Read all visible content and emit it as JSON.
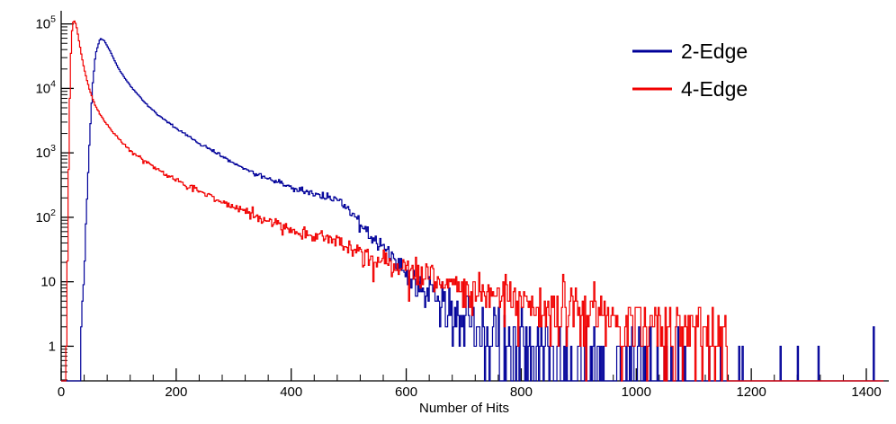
{
  "chart_data": {
    "type": "line",
    "subtype": "step-histogram",
    "title": "",
    "xlabel": "Number of Hits",
    "ylabel": "",
    "xlim": [
      0,
      1430
    ],
    "ylim": [
      0.29,
      160000
    ],
    "log_y": true,
    "grid": false,
    "background": "#ffffff",
    "axis_color": "#000000",
    "x_major_ticks": [
      0,
      200,
      400,
      600,
      800,
      1000,
      1200,
      1400
    ],
    "x_minor_step": 40,
    "y_ticks": [
      {
        "value": 1,
        "text": "1"
      },
      {
        "value": 10,
        "text": "10"
      },
      {
        "value": 100,
        "text": "10",
        "exp": "2"
      },
      {
        "value": 1000,
        "text": "10",
        "exp": "3"
      },
      {
        "value": 10000,
        "text": "10",
        "exp": "4"
      },
      {
        "value": 100000,
        "text": "10",
        "exp": "5"
      }
    ],
    "legend": {
      "position": "top-right"
    },
    "bin_width": 2,
    "noise_seed": 42,
    "series": [
      {
        "name": "2-Edge",
        "color": "#000099",
        "anchors": [
          [
            30,
            0.3
          ],
          [
            36,
            2
          ],
          [
            40,
            20
          ],
          [
            45,
            200
          ],
          [
            50,
            2000
          ],
          [
            55,
            12000
          ],
          [
            60,
            35000
          ],
          [
            68,
            60000
          ],
          [
            75,
            55000
          ],
          [
            85,
            38000
          ],
          [
            100,
            20000
          ],
          [
            120,
            11000
          ],
          [
            150,
            5500
          ],
          [
            175,
            3500
          ],
          [
            200,
            2400
          ],
          [
            250,
            1250
          ],
          [
            300,
            700
          ],
          [
            350,
            430
          ],
          [
            400,
            290
          ],
          [
            430,
            240
          ],
          [
            460,
            215
          ],
          [
            485,
            180
          ],
          [
            500,
            130
          ],
          [
            520,
            80
          ],
          [
            550,
            40
          ],
          [
            580,
            22
          ],
          [
            600,
            14
          ],
          [
            630,
            8
          ],
          [
            660,
            5
          ],
          [
            700,
            3
          ],
          [
            750,
            1.6
          ],
          [
            800,
            1.0
          ],
          [
            850,
            0.75
          ],
          [
            900,
            0.6
          ],
          [
            950,
            0.45
          ],
          [
            1000,
            0.35
          ],
          [
            1050,
            0.3
          ],
          [
            1100,
            0.22
          ],
          [
            1150,
            0.12
          ],
          [
            1180,
            0.03
          ],
          [
            1430,
            0.01
          ]
        ],
        "spikes": [
          [
            1250,
            1
          ],
          [
            1281,
            1
          ],
          [
            1413,
            2
          ]
        ]
      },
      {
        "name": "4-Edge",
        "color": "#f10000",
        "anchors": [
          [
            8,
            0.2
          ],
          [
            10,
            5
          ],
          [
            12,
            120
          ],
          [
            14,
            2500
          ],
          [
            16,
            20000
          ],
          [
            18,
            62000
          ],
          [
            20,
            100000
          ],
          [
            22,
            115000
          ],
          [
            26,
            98000
          ],
          [
            30,
            62000
          ],
          [
            35,
            34000
          ],
          [
            40,
            20000
          ],
          [
            50,
            9000
          ],
          [
            60,
            5200
          ],
          [
            75,
            3100
          ],
          [
            90,
            2100
          ],
          [
            100,
            1650
          ],
          [
            125,
            1000
          ],
          [
            150,
            700
          ],
          [
            175,
            500
          ],
          [
            200,
            370
          ],
          [
            250,
            230
          ],
          [
            300,
            145
          ],
          [
            350,
            95
          ],
          [
            400,
            64
          ],
          [
            435,
            54
          ],
          [
            470,
            45
          ],
          [
            500,
            33
          ],
          [
            550,
            22
          ],
          [
            600,
            15
          ],
          [
            650,
            11.5
          ],
          [
            700,
            8.5
          ],
          [
            750,
            6.5
          ],
          [
            800,
            5
          ],
          [
            850,
            4.2
          ],
          [
            900,
            3.6
          ],
          [
            950,
            3.1
          ],
          [
            1000,
            2.8
          ],
          [
            1050,
            2.5
          ],
          [
            1100,
            2.2
          ],
          [
            1135,
            1.8
          ],
          [
            1158,
            1.4
          ],
          [
            1163,
            0.001
          ],
          [
            1430,
            0.001
          ]
        ],
        "spikes": []
      }
    ]
  }
}
